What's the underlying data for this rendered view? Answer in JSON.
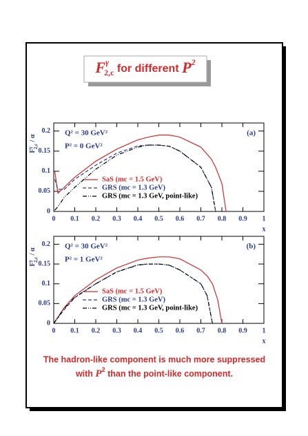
{
  "title": {
    "symbol": "F",
    "sup": "γ",
    "sub": "2,c",
    "text": " for different ",
    "var": "P",
    "power": "2"
  },
  "caption": [
    "The hadron-like component is much more suppressed",
    {
      "pre": "with ",
      "var": "P",
      "power": "2",
      "post": " than the point-like component."
    }
  ],
  "chart_data": [
    {
      "type": "line",
      "ylabel": {
        "symbol": "F",
        "sup": "γ",
        "sub": "2,c",
        "rest": " / α"
      },
      "xlabel": "x",
      "annotations": [
        "Q² = 30 GeV²",
        "P² = 0 GeV²",
        "(a)"
      ],
      "xlim": [
        0,
        1
      ],
      "ylim": [
        0,
        0.22
      ],
      "xticks": [
        0,
        0.1,
        0.2,
        0.3,
        0.4,
        0.5,
        0.6,
        0.7,
        0.8,
        0.9,
        1
      ],
      "yticks": [
        0,
        0.05,
        0.1,
        0.15,
        0.2
      ],
      "legend": "lower center",
      "x": [
        0.005,
        0.02,
        0.05,
        0.1,
        0.2,
        0.3,
        0.4,
        0.45,
        0.5,
        0.55,
        0.6,
        0.7,
        0.75,
        0.77,
        0.8,
        0.82
      ],
      "series": [
        {
          "name": "SaS  (mc = 1.5 GeV)",
          "color": "#d42a2a",
          "style": "solid",
          "values": [
            0.1,
            0.045,
            0.06,
            0.085,
            0.125,
            0.155,
            0.178,
            0.185,
            0.19,
            0.19,
            0.185,
            0.16,
            0.13,
            0.11,
            0.07,
            0
          ]
        },
        {
          "name": "GRS (mc = 1.3 GeV)",
          "color": "#2a3a8c",
          "style": "dashed",
          "values": [
            0.08,
            0.055,
            0.055,
            0.08,
            0.115,
            0.145,
            0.163,
            0.165,
            0.165,
            0.162,
            0.15,
            0.11,
            0.06,
            0,
            null,
            null
          ]
        },
        {
          "name": "GRS (mc = 1.3 GeV, point-like)",
          "color": "#000000",
          "style": "dashdot",
          "values": [
            0.003,
            0.012,
            0.035,
            0.06,
            0.105,
            0.14,
            0.16,
            0.165,
            0.165,
            0.162,
            0.15,
            0.11,
            0.06,
            0,
            null,
            null
          ]
        }
      ]
    },
    {
      "type": "line",
      "ylabel": {
        "symbol": "F",
        "sup": "γ",
        "sub": "2,c",
        "rest": " / α"
      },
      "xlabel": "x",
      "annotations": [
        "Q² = 30 GeV²",
        "P² = 1 GeV²",
        "(b)"
      ],
      "xlim": [
        0,
        1
      ],
      "ylim": [
        0,
        0.22
      ],
      "xticks": [
        0,
        0.1,
        0.2,
        0.3,
        0.4,
        0.5,
        0.6,
        0.7,
        0.8,
        0.9,
        1
      ],
      "yticks": [
        0,
        0.05,
        0.1,
        0.15,
        0.2
      ],
      "legend": "lower center",
      "x": [
        0,
        0.05,
        0.1,
        0.2,
        0.3,
        0.4,
        0.45,
        0.5,
        0.55,
        0.6,
        0.7,
        0.73,
        0.755,
        0.78,
        0.8
      ],
      "series": [
        {
          "name": "SaS  (mc = 1.5 GeV)",
          "color": "#d42a2a",
          "style": "solid",
          "values": [
            0,
            0.04,
            0.07,
            0.11,
            0.14,
            0.16,
            0.165,
            0.168,
            0.168,
            0.163,
            0.135,
            0.12,
            0.1,
            0.06,
            0
          ]
        },
        {
          "name": "GRS (mc = 1.3 GeV)",
          "color": "#2a3a8c",
          "style": "dashed",
          "values": [
            0,
            0.035,
            0.065,
            0.1,
            0.13,
            0.148,
            0.15,
            0.15,
            0.147,
            0.135,
            0.1,
            0.07,
            0,
            null,
            null
          ]
        },
        {
          "name": "GRS (mc = 1.3 GeV, point-like)",
          "color": "#000000",
          "style": "dashdot",
          "values": [
            0,
            0.038,
            0.066,
            0.1,
            0.13,
            0.147,
            0.15,
            0.15,
            0.147,
            0.135,
            0.1,
            0.07,
            0,
            null,
            null
          ]
        }
      ]
    }
  ]
}
